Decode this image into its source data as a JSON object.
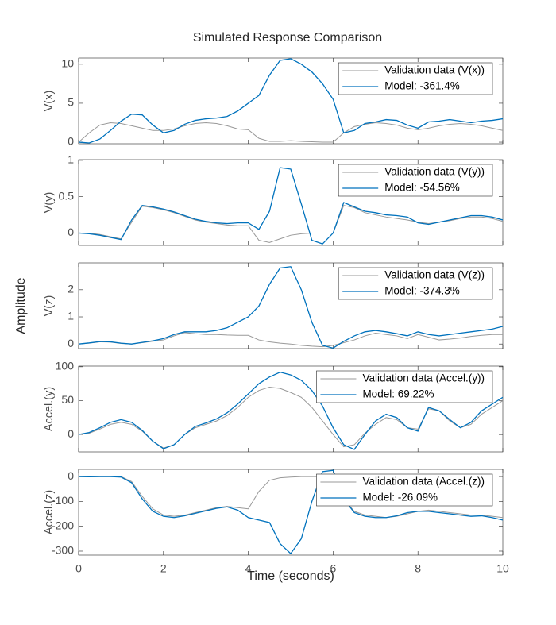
{
  "title": "Simulated Response Comparison",
  "xlabel": "Time (seconds)",
  "ylabel": "Amplitude",
  "chart_data": [
    {
      "type": "line",
      "ylabel": "V(x)",
      "legend": "northeast",
      "x": [
        0,
        0.25,
        0.5,
        0.75,
        1,
        1.25,
        1.5,
        1.75,
        2,
        2.25,
        2.5,
        2.75,
        3,
        3.25,
        3.5,
        3.75,
        4,
        4.25,
        4.5,
        4.75,
        5,
        5.25,
        5.5,
        5.75,
        6,
        6.25,
        6.5,
        6.75,
        7,
        7.25,
        7.5,
        7.75,
        8,
        8.25,
        8.5,
        8.75,
        9,
        9.25,
        9.5,
        9.75,
        10
      ],
      "xlim": [
        0,
        10
      ],
      "xticks": [
        0,
        2,
        4,
        6,
        8,
        10
      ],
      "ylim": [
        -0.2,
        10.8
      ],
      "yticks": [
        0,
        5,
        10
      ],
      "series": [
        {
          "name": "Validation data (V(x))",
          "color": "#999999",
          "values": [
            0,
            1.2,
            2.2,
            2.5,
            2.4,
            2.1,
            1.8,
            1.5,
            1.5,
            1.7,
            2.1,
            2.4,
            2.5,
            2.4,
            2.1,
            1.7,
            1.6,
            0.5,
            0.1,
            0.1,
            0.2,
            0.1,
            0.05,
            0,
            0,
            1.2,
            2.0,
            2.3,
            2.5,
            2.4,
            2.2,
            1.8,
            1.6,
            1.8,
            2.1,
            2.3,
            2.4,
            2.3,
            2.1,
            1.8,
            1.5
          ]
        },
        {
          "name": "Model: -361.4%",
          "color": "#0072bd",
          "values": [
            0,
            -0.1,
            0.4,
            1.5,
            2.7,
            3.6,
            3.5,
            2.2,
            1.2,
            1.5,
            2.3,
            2.8,
            3.0,
            3.1,
            3.3,
            4.0,
            5.0,
            6.0,
            8.6,
            10.5,
            10.7,
            10.0,
            9.0,
            7.5,
            5.5,
            1.2,
            1.5,
            2.4,
            2.6,
            2.9,
            2.8,
            2.2,
            1.8,
            2.6,
            2.7,
            2.9,
            2.7,
            2.5,
            2.7,
            2.8,
            3.0
          ]
        }
      ]
    },
    {
      "type": "line",
      "ylabel": "V(y)",
      "legend": "northeast",
      "x": [
        0,
        0.25,
        0.5,
        0.75,
        1,
        1.25,
        1.5,
        1.75,
        2,
        2.25,
        2.5,
        2.75,
        3,
        3.25,
        3.5,
        3.75,
        4,
        4.25,
        4.5,
        4.75,
        5,
        5.25,
        5.5,
        5.75,
        6,
        6.25,
        6.5,
        6.75,
        7,
        7.25,
        7.5,
        7.75,
        8,
        8.25,
        8.5,
        8.75,
        9,
        9.25,
        9.5,
        9.75,
        10
      ],
      "xlim": [
        0,
        10
      ],
      "xticks": [
        0,
        2,
        4,
        6,
        8,
        10
      ],
      "ylim": [
        -0.17,
        1.01
      ],
      "yticks": [
        0,
        0.5,
        1
      ],
      "series": [
        {
          "name": "Validation data (V(y))",
          "color": "#999999",
          "values": [
            0,
            0,
            -0.02,
            -0.05,
            -0.08,
            0.15,
            0.37,
            0.35,
            0.32,
            0.28,
            0.23,
            0.18,
            0.15,
            0.13,
            0.11,
            0.1,
            0.1,
            -0.1,
            -0.13,
            -0.08,
            -0.03,
            -0.01,
            0,
            0,
            0,
            0.38,
            0.35,
            0.28,
            0.25,
            0.22,
            0.2,
            0.18,
            0.15,
            0.13,
            0.15,
            0.17,
            0.2,
            0.22,
            0.22,
            0.2,
            0.16
          ]
        },
        {
          "name": "Model: -54.56%",
          "color": "#0072bd",
          "values": [
            0,
            -0.01,
            -0.03,
            -0.06,
            -0.09,
            0.18,
            0.38,
            0.36,
            0.33,
            0.29,
            0.24,
            0.19,
            0.16,
            0.14,
            0.13,
            0.14,
            0.14,
            0.05,
            0.3,
            0.9,
            0.88,
            0.4,
            -0.1,
            -0.15,
            0,
            0.42,
            0.36,
            0.3,
            0.28,
            0.25,
            0.24,
            0.22,
            0.14,
            0.12,
            0.15,
            0.18,
            0.21,
            0.24,
            0.24,
            0.22,
            0.18
          ]
        }
      ]
    },
    {
      "type": "line",
      "ylabel": "V(z)",
      "legend": "northeast",
      "x": [
        0,
        0.25,
        0.5,
        0.75,
        1,
        1.25,
        1.5,
        1.75,
        2,
        2.25,
        2.5,
        2.75,
        3,
        3.25,
        3.5,
        3.75,
        4,
        4.25,
        4.5,
        4.75,
        5,
        5.25,
        5.5,
        5.75,
        6,
        6.25,
        6.5,
        6.75,
        7,
        7.25,
        7.5,
        7.75,
        8,
        8.25,
        8.5,
        8.75,
        9,
        9.25,
        9.5,
        9.75,
        10
      ],
      "xlim": [
        0,
        10
      ],
      "xticks": [
        0,
        2,
        4,
        6,
        8,
        10
      ],
      "ylim": [
        -0.17,
        2.99
      ],
      "yticks": [
        0,
        1,
        2
      ],
      "series": [
        {
          "name": "Validation data (V(z))",
          "color": "#999999",
          "values": [
            0,
            0.03,
            0.08,
            0.07,
            0.02,
            0.0,
            0.05,
            0.1,
            0.15,
            0.3,
            0.42,
            0.38,
            0.35,
            0.35,
            0.33,
            0.32,
            0.32,
            0.15,
            0.08,
            0.03,
            0.0,
            -0.05,
            -0.08,
            -0.1,
            -0.05,
            0.05,
            0.15,
            0.3,
            0.4,
            0.35,
            0.3,
            0.2,
            0.35,
            0.25,
            0.15,
            0.18,
            0.22,
            0.28,
            0.32,
            0.35,
            0.35
          ]
        },
        {
          "name": "Model: -374.3%",
          "color": "#0072bd",
          "values": [
            0,
            0.04,
            0.09,
            0.08,
            0.03,
            0.0,
            0.06,
            0.12,
            0.2,
            0.35,
            0.45,
            0.45,
            0.45,
            0.5,
            0.6,
            0.8,
            1.0,
            1.4,
            2.2,
            2.8,
            2.85,
            2.0,
            0.8,
            -0.05,
            -0.15,
            0.1,
            0.3,
            0.45,
            0.5,
            0.45,
            0.38,
            0.3,
            0.45,
            0.35,
            0.3,
            0.35,
            0.4,
            0.45,
            0.5,
            0.55,
            0.65
          ]
        }
      ]
    },
    {
      "type": "line",
      "ylabel": "Accel.(y)",
      "legend": "northeast",
      "x": [
        0,
        0.25,
        0.5,
        0.75,
        1,
        1.25,
        1.5,
        1.75,
        2,
        2.25,
        2.5,
        2.75,
        3,
        3.25,
        3.5,
        3.75,
        4,
        4.25,
        4.5,
        4.75,
        5,
        5.25,
        5.5,
        5.75,
        6,
        6.25,
        6.5,
        6.75,
        7,
        7.25,
        7.5,
        7.75,
        8,
        8.25,
        8.5,
        8.75,
        9,
        9.25,
        9.5,
        9.75,
        10
      ],
      "xlim": [
        0,
        10
      ],
      "xticks": [
        0,
        2,
        4,
        6,
        8,
        10
      ],
      "ylim": [
        -25.6,
        101
      ],
      "yticks": [
        0,
        50,
        100
      ],
      "series": [
        {
          "name": "Validation data (Accel.(y))",
          "color": "#999999",
          "values": [
            0,
            2,
            8,
            15,
            18,
            15,
            5,
            -10,
            -20,
            -15,
            0,
            10,
            15,
            20,
            28,
            40,
            55,
            65,
            70,
            68,
            62,
            55,
            40,
            20,
            0,
            -18,
            -15,
            2,
            15,
            25,
            22,
            10,
            8,
            38,
            35,
            20,
            10,
            15,
            30,
            40,
            50
          ]
        },
        {
          "name": "Model: 69.22%",
          "color": "#0072bd",
          "values": [
            0,
            3,
            10,
            18,
            22,
            18,
            6,
            -10,
            -21,
            -15,
            0,
            12,
            17,
            23,
            32,
            45,
            60,
            75,
            85,
            92,
            88,
            80,
            65,
            42,
            10,
            -15,
            -22,
            0,
            20,
            30,
            25,
            10,
            5,
            40,
            35,
            22,
            10,
            18,
            35,
            45,
            55
          ]
        }
      ]
    },
    {
      "type": "line",
      "ylabel": "Accel.(z)",
      "legend": "northeast",
      "x": [
        0,
        0.25,
        0.5,
        0.75,
        1,
        1.25,
        1.5,
        1.75,
        2,
        2.25,
        2.5,
        2.75,
        3,
        3.25,
        3.5,
        3.75,
        4,
        4.25,
        4.5,
        4.75,
        5,
        5.25,
        5.5,
        5.75,
        6,
        6.25,
        6.5,
        6.75,
        7,
        7.25,
        7.5,
        7.75,
        8,
        8.25,
        8.5,
        8.75,
        9,
        9.25,
        9.5,
        9.75,
        10
      ],
      "xlim": [
        0,
        10
      ],
      "xticks": [
        0,
        2,
        4,
        6,
        8,
        10
      ],
      "ylim": [
        -316,
        29
      ],
      "yticks": [
        -300,
        -200,
        -100,
        0
      ],
      "series": [
        {
          "name": "Validation data (Accel.(z))",
          "color": "#999999",
          "values": [
            0,
            -1,
            0,
            0,
            0,
            -20,
            -80,
            -130,
            -155,
            -160,
            -155,
            -145,
            -135,
            -125,
            -120,
            -125,
            -130,
            -60,
            -15,
            -5,
            -2,
            0,
            0,
            0,
            -5,
            -90,
            -140,
            -155,
            -160,
            -165,
            -160,
            -150,
            -140,
            -135,
            -140,
            -145,
            -150,
            -155,
            -155,
            -160,
            -165
          ]
        },
        {
          "name": "Model: -26.09%",
          "color": "#0072bd",
          "values": [
            0,
            -1,
            0,
            0,
            -2,
            -25,
            -90,
            -140,
            -160,
            -165,
            -158,
            -148,
            -138,
            -128,
            -122,
            -135,
            -165,
            -175,
            -185,
            -270,
            -310,
            -250,
            -100,
            20,
            25,
            -90,
            -145,
            -160,
            -165,
            -165,
            -158,
            -145,
            -140,
            -140,
            -145,
            -150,
            -155,
            -160,
            -158,
            -165,
            -175
          ]
        }
      ]
    }
  ]
}
